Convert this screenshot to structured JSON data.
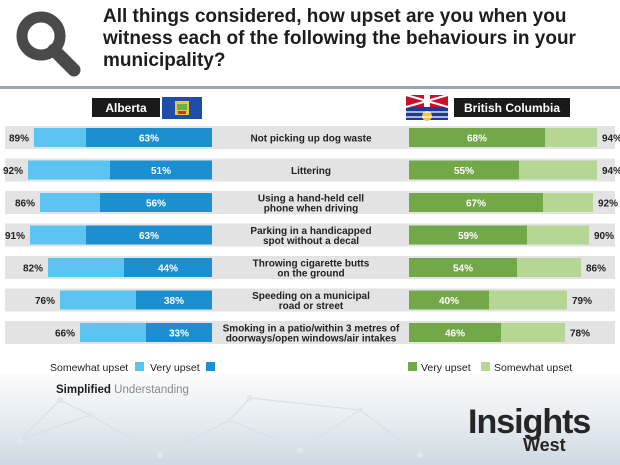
{
  "header": {
    "title": "All things considered, how upset are you when you witness each of the following the behaviours in your municipality?"
  },
  "regions": {
    "left": "Alberta",
    "right": "British Columbia"
  },
  "legend": {
    "left": [
      "Somewhat upset",
      "Very upset"
    ],
    "right": [
      "Very upset",
      "Somewhat upset"
    ]
  },
  "footer": {
    "tag_bold": "Simplified",
    "tag_muted": "Understanding",
    "brand": "Insights",
    "brand_sub": "West"
  },
  "colors": {
    "ab_somewhat": "#5bc4f0",
    "ab_very": "#1c8fd0",
    "bc_very": "#73a848",
    "bc_somewhat": "#b6d694",
    "row_band": "#e3e3e3"
  },
  "chart_data": {
    "type": "bar",
    "categories": [
      "Not picking up dog waste",
      "Littering",
      "Using a hand-held cell phone when driving",
      "Parking in a handicapped spot without a decal",
      "Throwing cigarette butts on the ground",
      "Speeding on a municipal road or street",
      "Smoking in a patio/within 3 metres of doorways/open windows/air intakes"
    ],
    "category_lines": [
      [
        "Not picking up dog waste"
      ],
      [
        "Littering"
      ],
      [
        "Using a hand-held cell",
        "phone when driving"
      ],
      [
        "Parking in a handicapped",
        "spot without a decal"
      ],
      [
        "Throwing cigarette butts",
        "on the ground"
      ],
      [
        "Speeding on a municipal",
        "road or street"
      ],
      [
        "Smoking in a patio/within 3 metres of",
        "doorways/open windows/air intakes"
      ]
    ],
    "alberta": {
      "total": [
        89,
        92,
        86,
        91,
        82,
        76,
        66
      ],
      "very": [
        63,
        51,
        56,
        63,
        44,
        38,
        33
      ]
    },
    "british_columbia": {
      "very": [
        68,
        55,
        67,
        59,
        54,
        40,
        46
      ],
      "total": [
        94,
        94,
        92,
        90,
        86,
        79,
        78
      ]
    },
    "value_suffix": "%",
    "xlim": [
      0,
      100
    ]
  }
}
